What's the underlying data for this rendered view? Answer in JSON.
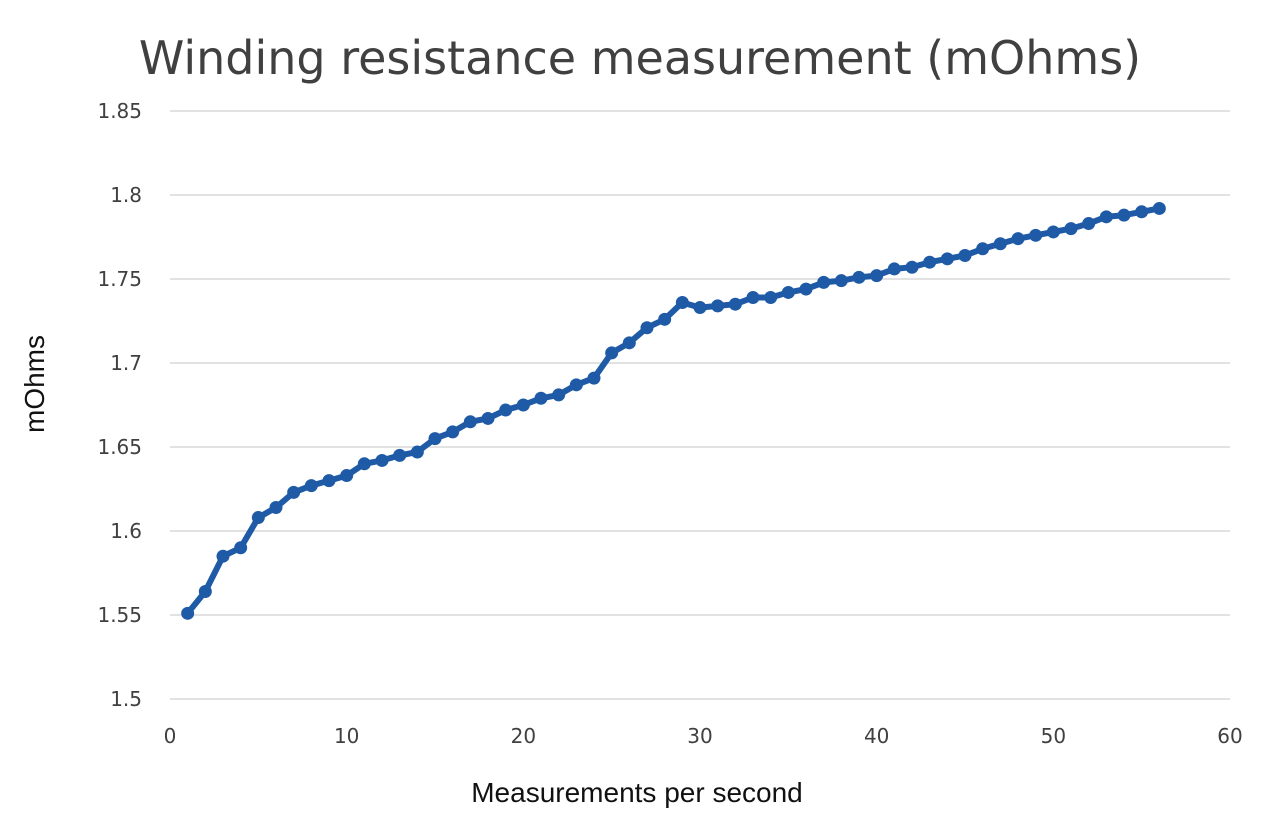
{
  "colors": {
    "series": "#1f5aa6",
    "grid": "#d9d9d9",
    "text": "#404040"
  },
  "chart_data": {
    "type": "scatter",
    "title": "Winding resistance measurement (mOhms)",
    "xlabel": "Measurements per second",
    "ylabel": "mOhms",
    "xlim": [
      0,
      60
    ],
    "ylim": [
      1.5,
      1.85
    ],
    "x_ticks": [
      "0",
      "10",
      "20",
      "30",
      "40",
      "50",
      "60"
    ],
    "y_ticks": [
      "1.5",
      "1.55",
      "1.6",
      "1.65",
      "1.7",
      "1.75",
      "1.8",
      "1.85"
    ],
    "grid": "horizontal",
    "legend": "none",
    "series": [
      {
        "style": "line-with-markers",
        "x": [
          1,
          2,
          3,
          4,
          5,
          6,
          7,
          8,
          9,
          10,
          11,
          12,
          13,
          14,
          15,
          16,
          17,
          18,
          19,
          20,
          21,
          22,
          23,
          24,
          25,
          26,
          27,
          28,
          29,
          30,
          31,
          32,
          33,
          34,
          35,
          36,
          37,
          38,
          39,
          40,
          41,
          42,
          43,
          44,
          45,
          46,
          47,
          48,
          49,
          50,
          51,
          52,
          53,
          54,
          55,
          56
        ],
        "y": [
          1.551,
          1.564,
          1.585,
          1.59,
          1.608,
          1.614,
          1.623,
          1.627,
          1.63,
          1.633,
          1.64,
          1.642,
          1.645,
          1.647,
          1.655,
          1.659,
          1.665,
          1.667,
          1.672,
          1.675,
          1.679,
          1.681,
          1.687,
          1.691,
          1.706,
          1.712,
          1.721,
          1.726,
          1.736,
          1.733,
          1.734,
          1.735,
          1.739,
          1.739,
          1.742,
          1.744,
          1.748,
          1.749,
          1.751,
          1.752,
          1.756,
          1.757,
          1.76,
          1.762,
          1.764,
          1.768,
          1.771,
          1.774,
          1.776,
          1.778,
          1.78,
          1.783,
          1.787,
          1.788,
          1.79,
          1.792
        ]
      }
    ]
  }
}
